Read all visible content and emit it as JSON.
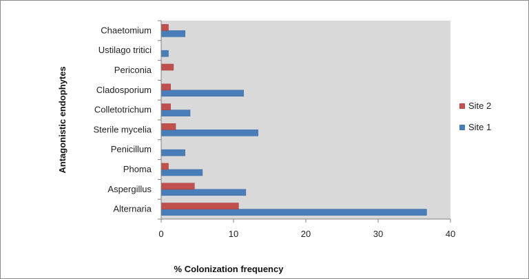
{
  "chart_data": {
    "type": "bar",
    "orientation": "horizontal",
    "categories": [
      "Alternaria",
      "Aspergillus",
      "Phoma",
      "Penicillum",
      "Sterile mycelia",
      "Colletotrichum",
      "Cladosporium",
      "Periconia",
      "Ustilago tritici",
      "Chaetomium"
    ],
    "series": [
      {
        "name": "Site 1",
        "color": "#4a7ebb",
        "values": [
          36.7,
          11.7,
          5.7,
          3.3,
          13.4,
          4.0,
          11.4,
          0.0,
          1.0,
          3.3
        ]
      },
      {
        "name": "Site 2",
        "color": "#c0504d",
        "values": [
          10.7,
          4.6,
          1.0,
          0.0,
          2.0,
          1.3,
          1.3,
          1.7,
          0.0,
          1.0
        ]
      }
    ],
    "xlabel": "% Colonization frequency",
    "ylabel": "Antagonistic endophytes",
    "xlim": [
      0,
      40
    ],
    "xticks": [
      0,
      10,
      20,
      30,
      40
    ],
    "grid": false,
    "plot_background": "#d9d9d9",
    "legend_position": "right",
    "legend_order": [
      "Site 2",
      "Site 1"
    ]
  }
}
